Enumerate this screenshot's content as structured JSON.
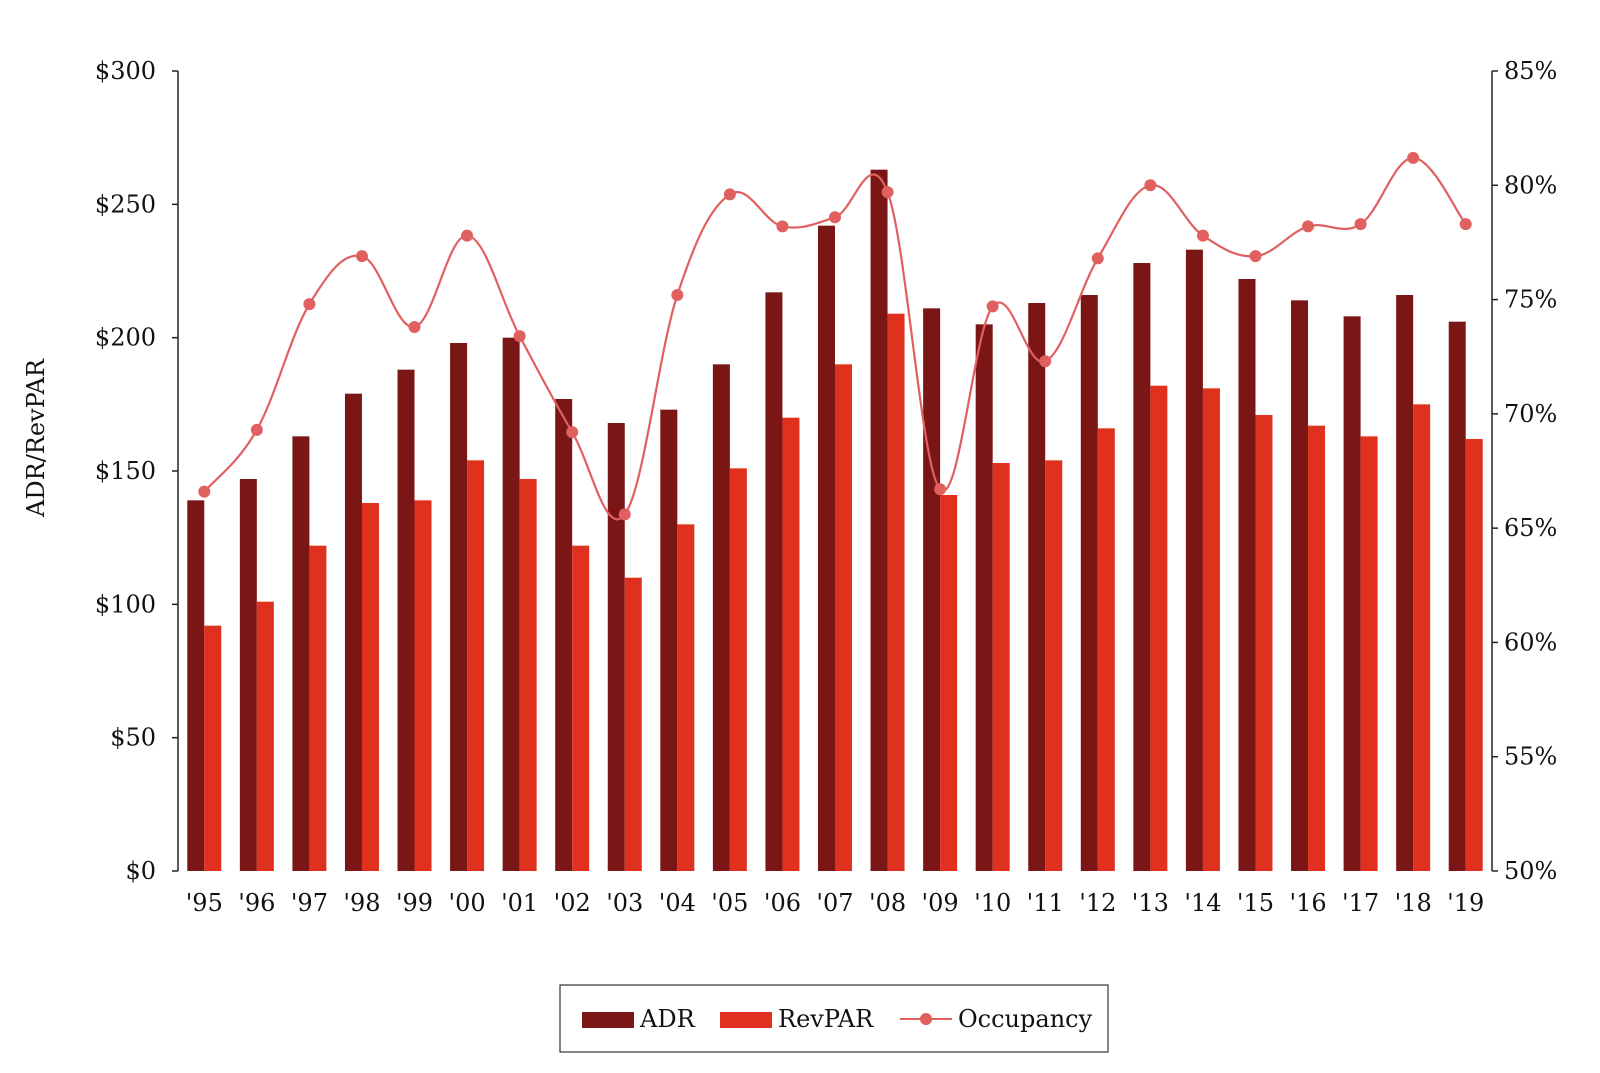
{
  "chart_data": {
    "type": "bar",
    "categories": [
      "'95",
      "'96",
      "'97",
      "'98",
      "'99",
      "'00",
      "'01",
      "'02",
      "'03",
      "'04",
      "'05",
      "'06",
      "'07",
      "'08",
      "'09",
      "'10",
      "'11",
      "'12",
      "'13",
      "'14",
      "'15",
      "'16",
      "'17",
      "'18",
      "'19"
    ],
    "series": [
      {
        "name": "ADR",
        "type": "bar",
        "axis": "left",
        "color": "#7b1616",
        "values": [
          139,
          147,
          163,
          179,
          188,
          198,
          200,
          177,
          168,
          173,
          190,
          217,
          242,
          263,
          211,
          205,
          213,
          216,
          228,
          233,
          222,
          214,
          208,
          216,
          206
        ]
      },
      {
        "name": "RevPAR",
        "type": "bar",
        "axis": "left",
        "color": "#e0301e",
        "values": [
          92,
          101,
          122,
          138,
          139,
          154,
          147,
          122,
          110,
          130,
          151,
          170,
          190,
          209,
          141,
          153,
          154,
          166,
          182,
          181,
          171,
          167,
          163,
          175,
          162
        ]
      },
      {
        "name": "Occupancy",
        "type": "line",
        "axis": "right",
        "color": "#e06060",
        "values": [
          66.6,
          69.3,
          74.8,
          76.9,
          73.8,
          77.8,
          73.4,
          69.2,
          65.6,
          75.2,
          79.6,
          78.2,
          78.6,
          79.7,
          66.7,
          74.7,
          72.3,
          76.8,
          80.0,
          77.8,
          76.9,
          78.2,
          78.3,
          81.2,
          78.3
        ]
      }
    ],
    "ylabel": "ADR/RevPAR",
    "ylim": [
      0,
      300
    ],
    "yticks": [
      "$0",
      "$50",
      "$100",
      "$150",
      "$200",
      "$250",
      "$300"
    ],
    "y2lim": [
      50,
      85
    ],
    "y2ticks": [
      "50%",
      "55%",
      "60%",
      "65%",
      "70%",
      "75%",
      "80%",
      "85%"
    ],
    "legend_position": "bottom-center",
    "grid": false
  },
  "legend": {
    "adr": "ADR",
    "revpar": "RevPAR",
    "occupancy": "Occupancy"
  }
}
